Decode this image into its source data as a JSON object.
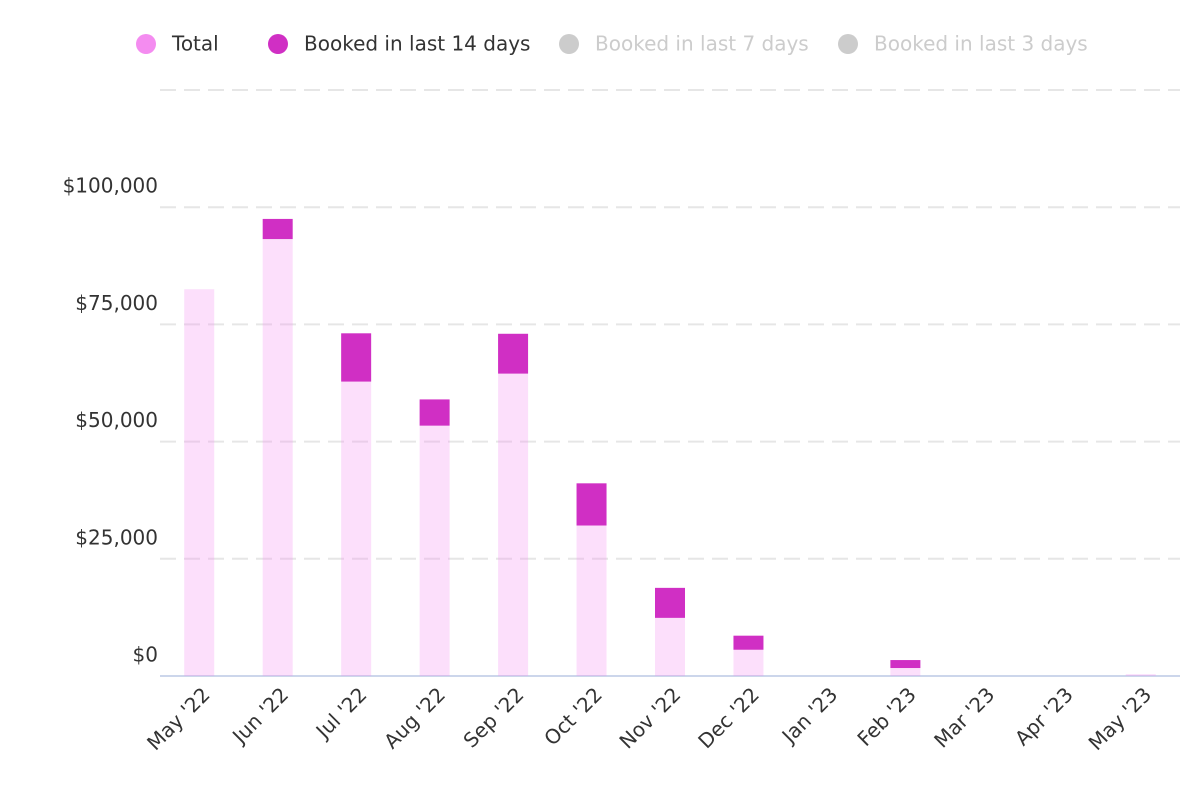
{
  "chart_data": {
    "type": "bar",
    "stacked": true,
    "categories": [
      "May '22",
      "Jun '22",
      "Jul '22",
      "Aug '22",
      "Sep '22",
      "Oct '22",
      "Nov '22",
      "Dec '22",
      "Jan '23",
      "Feb '23",
      "Mar '23",
      "Apr '23",
      "May '23"
    ],
    "series": [
      {
        "name": "Total",
        "color": "#f48cf0",
        "values": [
          82500,
          93200,
          62800,
          53400,
          64500,
          32100,
          12400,
          5600,
          0,
          1700,
          0,
          0,
          400
        ]
      },
      {
        "name": "Booked in last 14 days",
        "color": "#d02fc4",
        "values": [
          0,
          4300,
          10300,
          5600,
          8500,
          9000,
          6400,
          3000,
          0,
          1700,
          0,
          0,
          0
        ]
      },
      {
        "name": "Booked in last 7 days",
        "color": "#cccccc",
        "hidden": true,
        "values": [
          null,
          null,
          null,
          null,
          null,
          null,
          null,
          null,
          null,
          null,
          null,
          null,
          null
        ]
      },
      {
        "name": "Booked in last 3 days",
        "color": "#cccccc",
        "hidden": true,
        "values": [
          null,
          null,
          null,
          null,
          null,
          null,
          null,
          null,
          null,
          null,
          null,
          null,
          null
        ]
      }
    ],
    "ylim": [
      0,
      125000
    ],
    "yticks": [
      {
        "value": 0,
        "label": "$0"
      },
      {
        "value": 25000,
        "label": "$25,000"
      },
      {
        "value": 50000,
        "label": "$50,000"
      },
      {
        "value": 75000,
        "label": "$75,000"
      },
      {
        "value": 100000,
        "label": "$100,000"
      }
    ],
    "grid": true,
    "legend": "top"
  }
}
